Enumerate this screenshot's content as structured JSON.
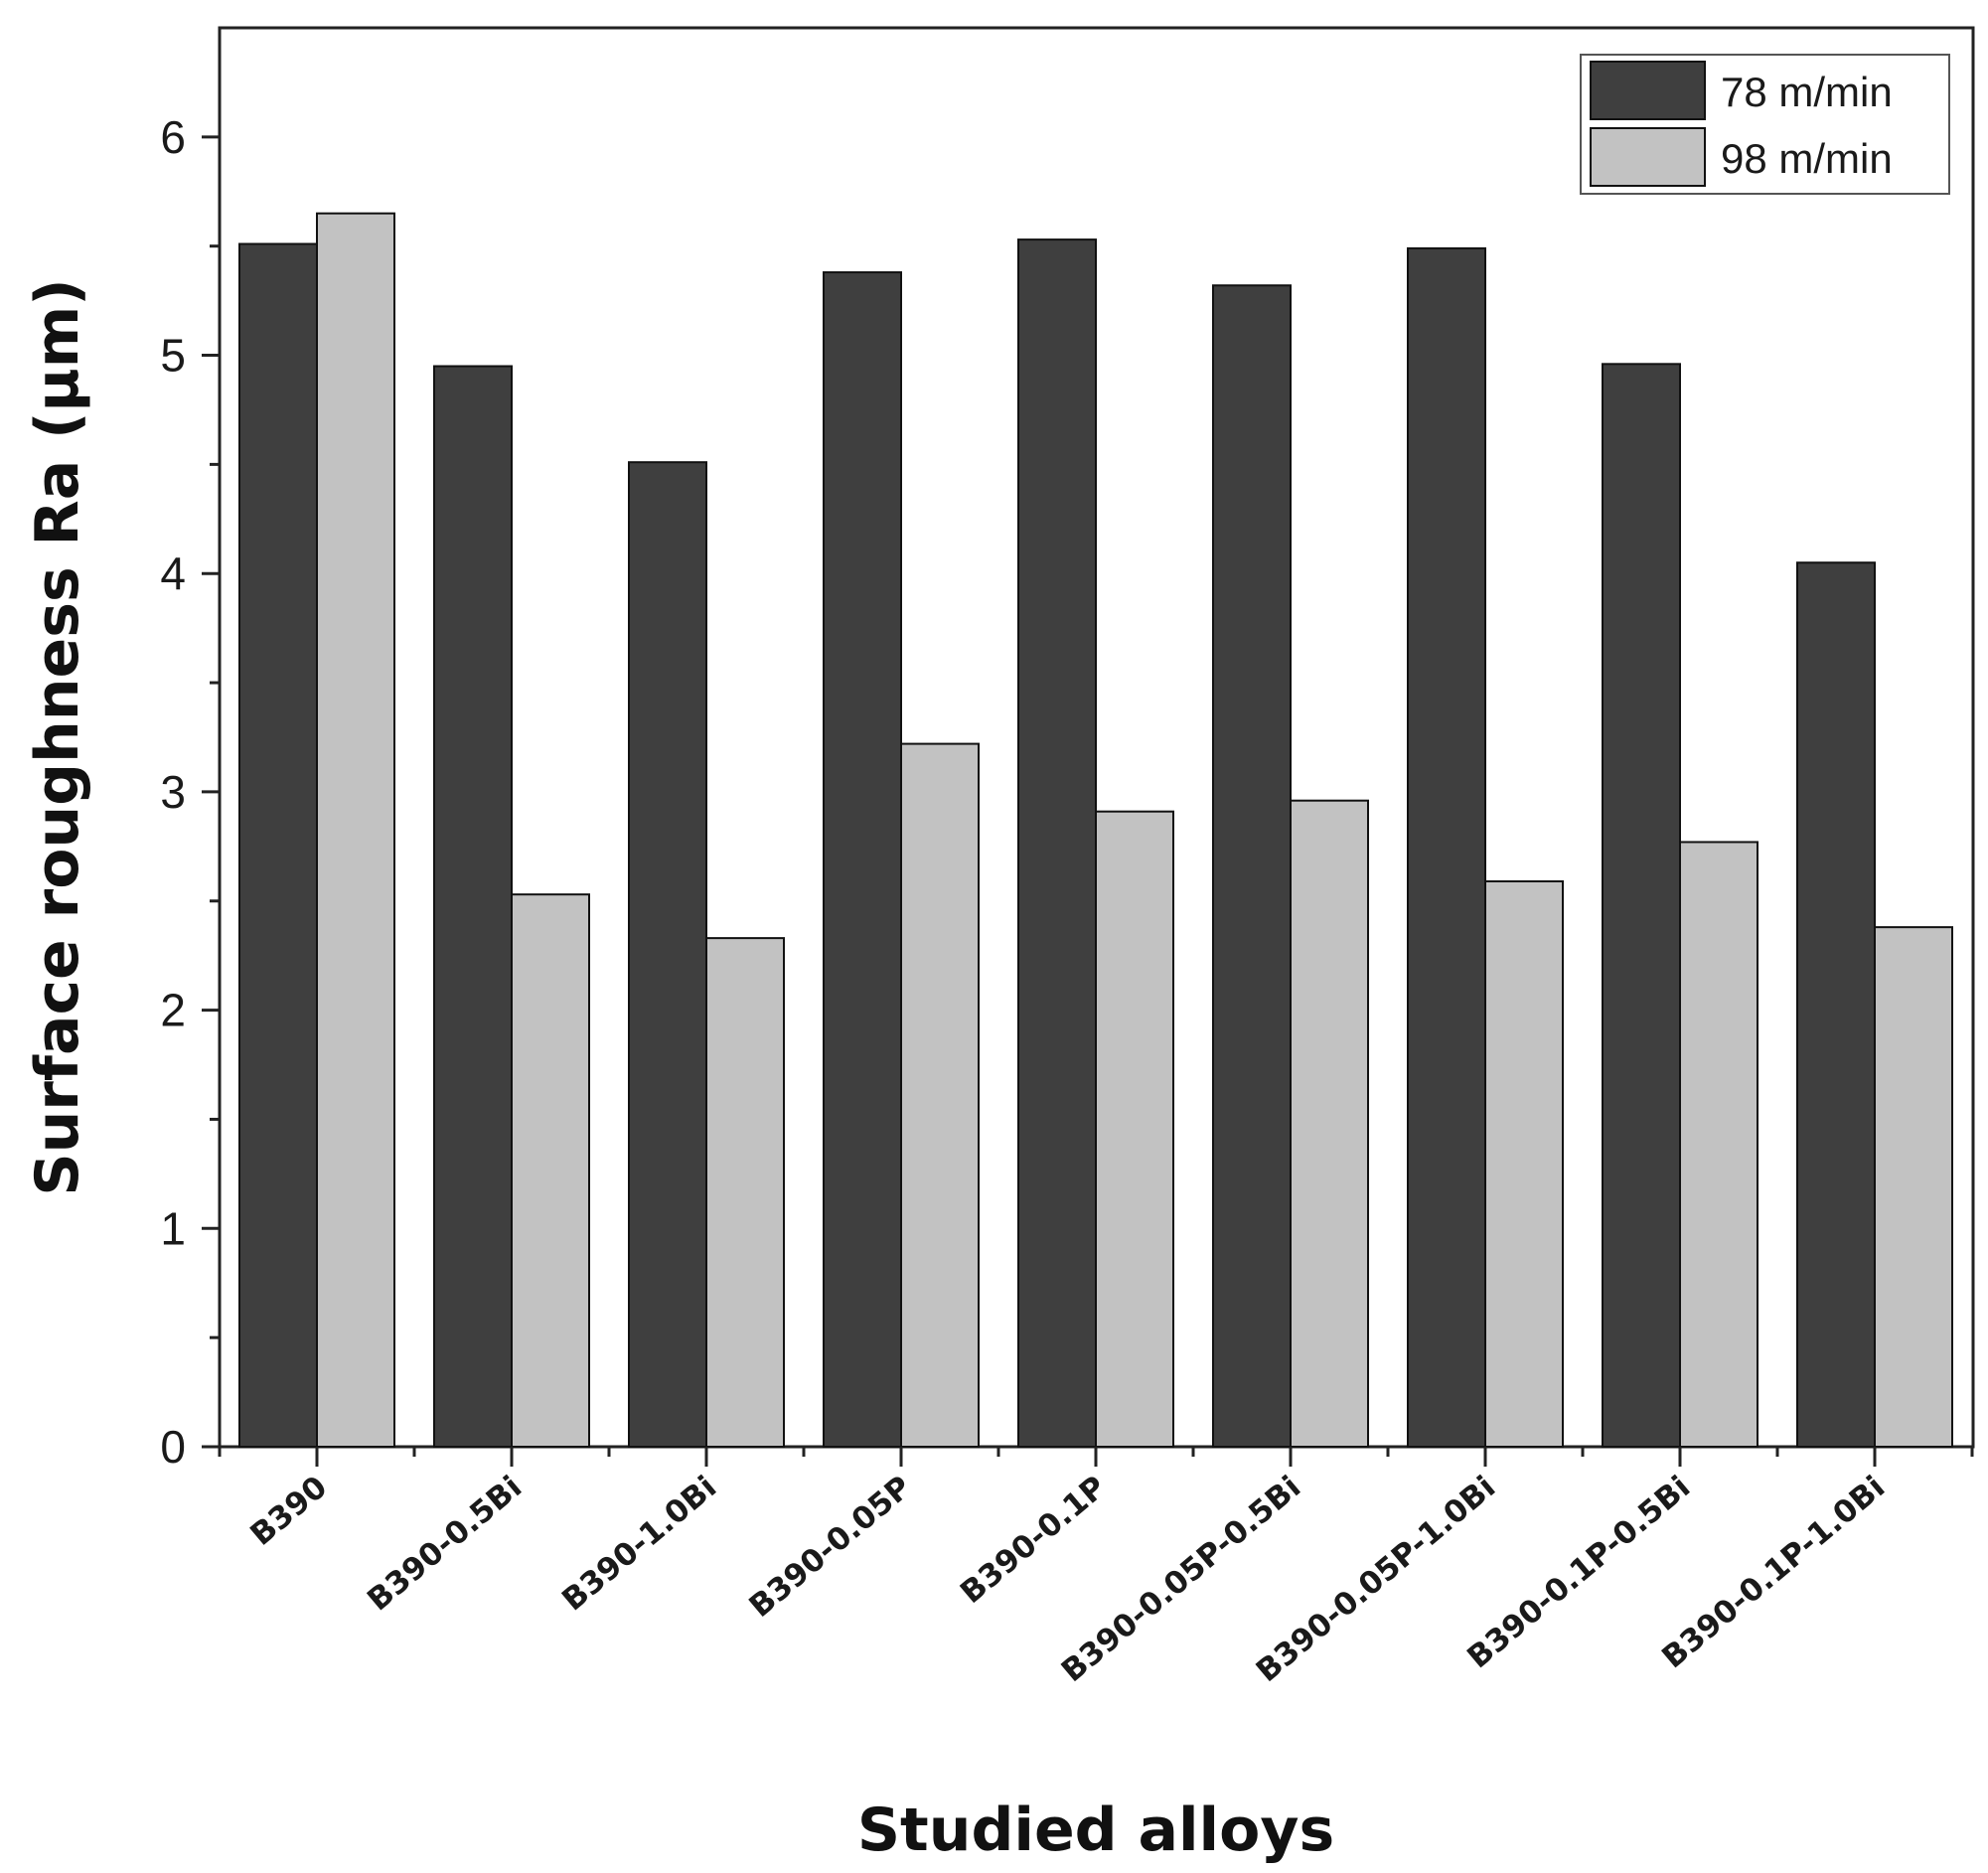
{
  "chart_data": {
    "type": "bar",
    "title": "",
    "xlabel": "Studied alloys",
    "ylabel": "Surface roughness Ra (µm)",
    "ylim": [
      0,
      6.5
    ],
    "yticks": [
      "0",
      "1",
      "2",
      "3",
      "4",
      "5",
      "6"
    ],
    "grid": false,
    "legend_position": "top-right",
    "categories": [
      "B390",
      "B390-0.5Bi",
      "B390-1.0Bi",
      "B390-0.05P",
      "B390-0.1P",
      "B390-0.05P-0.5Bi",
      "B390-0.05P-1.0Bi",
      "B390-0.1P-0.5Bi",
      "B390-0.1P-1.0Bi"
    ],
    "series": [
      {
        "name": "78 m/min",
        "color": "#3f3f3f",
        "values": [
          5.51,
          4.95,
          4.51,
          5.38,
          5.53,
          5.32,
          5.49,
          4.96,
          4.05
        ]
      },
      {
        "name": "98 m/min",
        "color": "#c2c2c2",
        "values": [
          5.65,
          2.53,
          2.33,
          3.22,
          2.91,
          2.96,
          2.59,
          2.77,
          2.38
        ]
      }
    ]
  }
}
